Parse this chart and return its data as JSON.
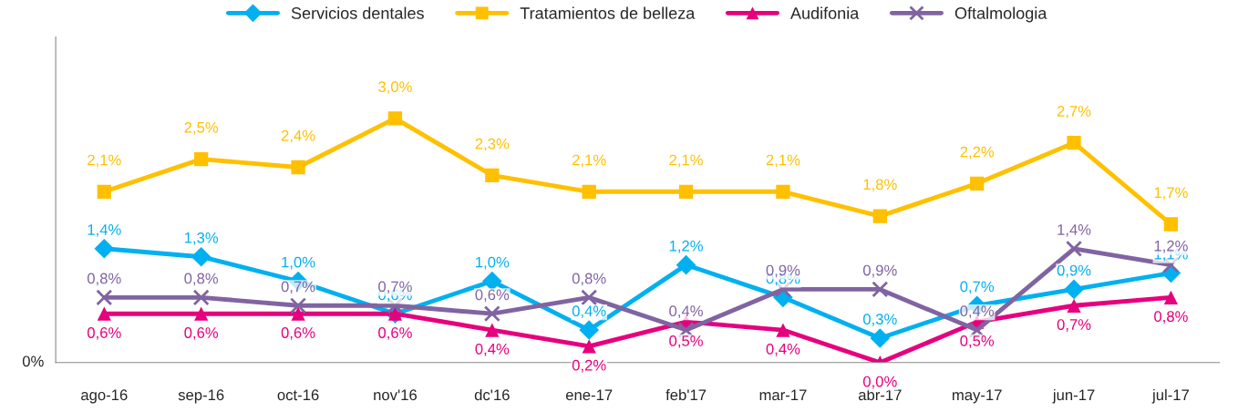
{
  "chart_data": {
    "type": "line",
    "categories": [
      "ago-16",
      "sep-16",
      "oct-16",
      "nov'16",
      "dc'16",
      "ene-17",
      "feb'17",
      "mar-17",
      "abr-17",
      "may-17",
      "jun-17",
      "jul-17"
    ],
    "series": [
      {
        "name": "Servicios dentales",
        "color": "#00b0f0",
        "marker": "diamond",
        "values": [
          1.4,
          1.3,
          1.0,
          0.6,
          1.0,
          0.4,
          1.2,
          0.8,
          0.3,
          0.7,
          0.9,
          1.1
        ],
        "value_labels": [
          "1,4%",
          "1,3%",
          "1,0%",
          "0,6%",
          "1,0%",
          "0,4%",
          "1,2%",
          "0,8%",
          "0,3%",
          "0,7%",
          "0,9%",
          "1,1%"
        ]
      },
      {
        "name": "Tratamientos de belleza",
        "color": "#ffc000",
        "marker": "square",
        "values": [
          2.1,
          2.5,
          2.4,
          3.0,
          2.3,
          2.1,
          2.1,
          2.1,
          1.8,
          2.2,
          2.7,
          1.7
        ],
        "value_labels": [
          "2,1%",
          "2,5%",
          "2,4%",
          "3,0%",
          "2,3%",
          "2,1%",
          "2,1%",
          "2,1%",
          "1,8%",
          "2,2%",
          "2,7%",
          "1,7%"
        ]
      },
      {
        "name": "Audifonia",
        "color": "#e6007e",
        "marker": "triangle",
        "values": [
          0.6,
          0.6,
          0.6,
          0.6,
          0.4,
          0.2,
          0.5,
          0.4,
          0.0,
          0.5,
          0.7,
          0.8
        ],
        "value_labels": [
          "0,6%",
          "0,6%",
          "0,6%",
          "0,6%",
          "0,4%",
          "0,2%",
          "0,5%",
          "0,4%",
          "0,0%",
          "0,5%",
          "0,7%",
          "0,8%"
        ]
      },
      {
        "name": "Oftalmologia",
        "color": "#8064a2",
        "marker": "cross",
        "values": [
          0.8,
          0.8,
          0.7,
          0.7,
          0.6,
          0.8,
          0.4,
          0.9,
          0.9,
          0.4,
          1.4,
          1.2
        ],
        "value_labels": [
          "0,8%",
          "0,8%",
          "0,7%",
          "0,7%",
          "0,6%",
          "0,8%",
          "0,4%",
          "0,9%",
          "0,9%",
          "0,4%",
          "1,4%",
          "1,2%"
        ]
      }
    ],
    "ylim": [
      0,
      4
    ],
    "annotations": [
      "0%"
    ],
    "grid": false,
    "legend": "top",
    "line_style": "solid"
  }
}
